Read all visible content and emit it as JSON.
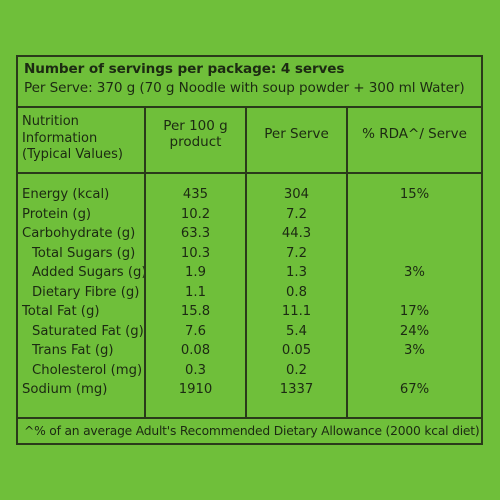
{
  "servings": {
    "line1": "Number of servings per package: 4 serves",
    "line2": "Per Serve: 370 g (70 g Noodle with soup powder + 300 ml Water)"
  },
  "headers": {
    "col1": [
      "Nutrition",
      "Information",
      "(Typical Values)"
    ],
    "col2": [
      "Per 100 g",
      "product"
    ],
    "col3": "Per Serve",
    "col4": "% RDA^/ Serve"
  },
  "rows": [
    {
      "label": "Energy (kcal)",
      "per100": "435",
      "perServe": "304",
      "rda": "15%"
    },
    {
      "label": "Protein (g)",
      "per100": "10.2",
      "perServe": "7.2",
      "rda": ""
    },
    {
      "label": "Carbohydrate (g)",
      "per100": "63.3",
      "perServe": "44.3",
      "rda": ""
    },
    {
      "label": "Total Sugars (g)",
      "per100": "10.3",
      "perServe": "7.2",
      "rda": ""
    },
    {
      "label": "Added Sugars (g)",
      "per100": "1.9",
      "perServe": "1.3",
      "rda": "3%"
    },
    {
      "label": "Dietary Fibre (g)",
      "per100": "1.1",
      "perServe": "0.8",
      "rda": ""
    },
    {
      "label": "Total Fat (g)",
      "per100": "15.8",
      "perServe": "11.1",
      "rda": "17%"
    },
    {
      "label": "Saturated Fat (g)",
      "per100": "7.6",
      "perServe": "5.4",
      "rda": "24%"
    },
    {
      "label": "Trans Fat (g)",
      "per100": "0.08",
      "perServe": "0.05",
      "rda": "3%"
    },
    {
      "label": "Cholesterol (mg)",
      "per100": "0.3",
      "perServe": "0.2",
      "rda": ""
    },
    {
      "label": "Sodium (mg)",
      "per100": "1910",
      "perServe": "1337",
      "rda": "67%"
    }
  ],
  "footnote": "^% of an average Adult's Recommended Dietary Allowance (2000 kcal diet)"
}
